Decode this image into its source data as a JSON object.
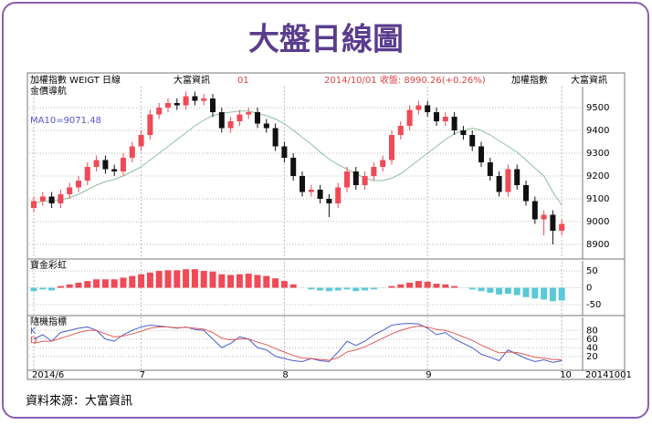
{
  "header": {
    "title": "大盤日線圖",
    "left": "加權指數 WEIGT 日線",
    "vendor": "大富資訊",
    "code": "01",
    "center": "2014/10/01 收盤: 8990.26(+0.26%)",
    "right_name": "加權指數",
    "right_vendor": "大富資訊"
  },
  "footer": {
    "source": "資料來源：大富資訊"
  },
  "chart_data": [
    {
      "type": "candlestick",
      "label": "金價導航",
      "categories": [
        null,
        null,
        null,
        null,
        null,
        null,
        null,
        null,
        null,
        null,
        null,
        null,
        null,
        null,
        null,
        null,
        null,
        null,
        null,
        null,
        null,
        null,
        null,
        null,
        null,
        null,
        null,
        null,
        null,
        null,
        null,
        null,
        null,
        null,
        null,
        null,
        null,
        null,
        null,
        null,
        null,
        null,
        null,
        null,
        null,
        null,
        null,
        null,
        null,
        null,
        null,
        null,
        null,
        null,
        null,
        null,
        null,
        null,
        null,
        null
      ],
      "open": [
        9060,
        9090,
        9110,
        9080,
        9120,
        9150,
        9180,
        9240,
        9270,
        9230,
        9220,
        9280,
        9330,
        9380,
        9470,
        9500,
        9520,
        9510,
        9550,
        9530,
        9540,
        9480,
        9410,
        9440,
        9470,
        9480,
        9430,
        9410,
        9330,
        9280,
        9200,
        9130,
        9140,
        9100,
        9080,
        9150,
        9220,
        9160,
        9200,
        9240,
        9270,
        9380,
        9420,
        9490,
        9510,
        9480,
        9440,
        9460,
        9400,
        9380,
        9330,
        9260,
        9200,
        9130,
        9230,
        9160,
        9090,
        9010,
        9030,
        8960
      ],
      "high": [
        9110,
        9130,
        9130,
        9140,
        9170,
        9200,
        9260,
        9290,
        9290,
        9250,
        9300,
        9350,
        9400,
        9490,
        9520,
        9540,
        9540,
        9570,
        9570,
        9560,
        9560,
        9500,
        9460,
        9490,
        9500,
        9500,
        9450,
        9430,
        9350,
        9300,
        9220,
        9160,
        9160,
        9120,
        9170,
        9240,
        9240,
        9220,
        9260,
        9290,
        9400,
        9440,
        9510,
        9530,
        9530,
        9500,
        9480,
        9480,
        9420,
        9400,
        9350,
        9280,
        9220,
        9250,
        9250,
        9180,
        9110,
        9050,
        9050,
        9010
      ],
      "low": [
        9040,
        9070,
        9060,
        9060,
        9100,
        9130,
        9160,
        9220,
        9210,
        9200,
        9200,
        9260,
        9310,
        9360,
        9450,
        9480,
        9490,
        9490,
        9510,
        9510,
        9460,
        9390,
        9390,
        9420,
        9450,
        9410,
        9390,
        9310,
        9260,
        9180,
        9110,
        9110,
        9080,
        9020,
        9060,
        9130,
        9140,
        9140,
        9180,
        9220,
        9250,
        9360,
        9400,
        9470,
        9460,
        9420,
        9420,
        9380,
        9360,
        9310,
        9240,
        9180,
        9110,
        9110,
        9140,
        9070,
        8990,
        8940,
        8900,
        8940
      ],
      "close": [
        9090,
        9110,
        9080,
        9120,
        9150,
        9180,
        9240,
        9270,
        9230,
        9220,
        9280,
        9330,
        9380,
        9470,
        9500,
        9520,
        9510,
        9550,
        9530,
        9540,
        9480,
        9410,
        9440,
        9470,
        9480,
        9430,
        9410,
        9330,
        9280,
        9200,
        9130,
        9140,
        9100,
        9080,
        9150,
        9220,
        9160,
        9200,
        9240,
        9270,
        9380,
        9420,
        9490,
        9510,
        9480,
        9440,
        9460,
        9400,
        9380,
        9330,
        9260,
        9200,
        9130,
        9230,
        9160,
        9090,
        9010,
        9030,
        8960,
        8990
      ],
      "up_color": "#ef4a55",
      "down_color": "#111111",
      "series": [
        {
          "name": "MA10=9071.48",
          "color": "#8fbf9f",
          "values": [
            9080,
            9090,
            9090,
            9095,
            9105,
            9120,
            9140,
            9160,
            9175,
            9185,
            9200,
            9220,
            9240,
            9270,
            9300,
            9330,
            9360,
            9390,
            9420,
            9445,
            9465,
            9475,
            9480,
            9485,
            9485,
            9475,
            9465,
            9450,
            9430,
            9400,
            9370,
            9340,
            9305,
            9275,
            9250,
            9230,
            9210,
            9190,
            9180,
            9180,
            9190,
            9210,
            9240,
            9270,
            9300,
            9330,
            9360,
            9385,
            9400,
            9410,
            9400,
            9380,
            9355,
            9330,
            9305,
            9270,
            9235,
            9200,
            9130,
            9071.48
          ]
        }
      ],
      "ylim": [
        8840,
        9592
      ],
      "yticks": [
        8900,
        9000,
        9100,
        9200,
        9300,
        9400,
        9500
      ],
      "grid": true
    },
    {
      "type": "bar",
      "label": "寶金彩虹",
      "values": [
        -10,
        -5,
        -8,
        5,
        10,
        15,
        20,
        25,
        25,
        25,
        30,
        35,
        40,
        45,
        50,
        52,
        52,
        55,
        55,
        50,
        48,
        40,
        38,
        40,
        42,
        38,
        35,
        28,
        20,
        10,
        0,
        -5,
        -8,
        -10,
        -8,
        -5,
        -10,
        -8,
        -5,
        0,
        5,
        10,
        15,
        20,
        18,
        12,
        10,
        5,
        0,
        -5,
        -10,
        -15,
        -20,
        -18,
        -22,
        -28,
        -32,
        -35,
        -40,
        -38
      ],
      "up_color": "#ef4a55",
      "down_color": "#5bc8d8",
      "ylim": [
        -80,
        80
      ],
      "yticks": [
        50,
        0,
        -50
      ],
      "grid": true
    },
    {
      "type": "line",
      "label": "隨機指標",
      "series": [
        {
          "name": "K",
          "color": "#4a5fc8",
          "values": [
            60,
            70,
            55,
            75,
            80,
            85,
            88,
            80,
            60,
            55,
            70,
            80,
            88,
            92,
            90,
            88,
            85,
            88,
            82,
            80,
            60,
            40,
            50,
            65,
            60,
            40,
            35,
            20,
            15,
            10,
            8,
            15,
            10,
            8,
            30,
            55,
            45,
            55,
            70,
            80,
            92,
            95,
            96,
            95,
            85,
            70,
            75,
            60,
            50,
            40,
            25,
            18,
            10,
            35,
            25,
            15,
            8,
            12,
            6,
            10
          ]
        },
        {
          "name": "D",
          "color": "#e05a5a",
          "values": [
            50,
            55,
            55,
            62,
            68,
            75,
            80,
            80,
            72,
            65,
            67,
            72,
            78,
            85,
            88,
            88,
            86,
            87,
            85,
            83,
            75,
            62,
            58,
            60,
            60,
            53,
            47,
            38,
            30,
            22,
            16,
            15,
            13,
            11,
            17,
            30,
            35,
            42,
            52,
            62,
            72,
            80,
            86,
            90,
            88,
            82,
            80,
            73,
            65,
            57,
            46,
            37,
            28,
            30,
            29,
            24,
            18,
            16,
            13,
            12
          ]
        }
      ],
      "ylim": [
        -10,
        110
      ],
      "yticks": [
        20,
        40,
        60,
        80
      ],
      "grid": true,
      "x_labels": [
        {
          "value": 0,
          "label": "2014/6"
        },
        {
          "value": 12,
          "label": "7"
        },
        {
          "value": 28,
          "label": "8"
        },
        {
          "value": 44,
          "label": "9"
        },
        {
          "value": 59,
          "label": "10"
        }
      ],
      "x_end_label": "20141001"
    }
  ]
}
